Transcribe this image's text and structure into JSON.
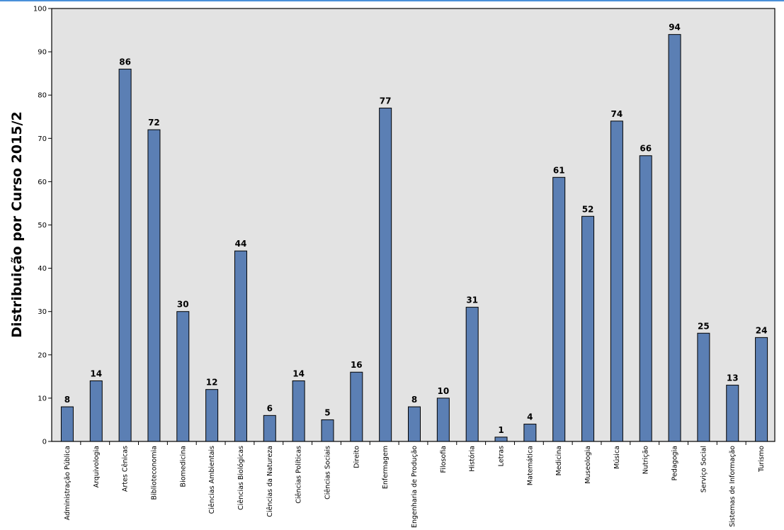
{
  "chart_data": {
    "type": "bar",
    "title": "",
    "xlabel": "",
    "ylabel": "Distribuição por Curso 2015/2",
    "ylim": [
      0,
      100
    ],
    "yticks": [
      0,
      10,
      20,
      30,
      40,
      50,
      60,
      70,
      80,
      90,
      100
    ],
    "grid": false,
    "legend": "none",
    "colors": {
      "bar": "#5b7fb4",
      "plot_background": "#e3e3e3",
      "bar_border": "#000000"
    },
    "categories": [
      "Administração Pública",
      "Arquivologia",
      "Artes Cênicas",
      "Biblioteconomia",
      "Biomedicina",
      "Ciências Ambientais",
      "Ciências Biológicas",
      "Ciências da Natureza",
      "Ciências Políticas",
      "Ciências Sociais",
      "Direito",
      "Enfermagem",
      "Engenharia de Produção",
      "Filosofia",
      "História",
      "Letras",
      "Matemática",
      "Medicina",
      "Museologia",
      "Música",
      "Nutrição",
      "Pedagogia",
      "Serviço Social",
      "Sistemas de Informação",
      "Turismo"
    ],
    "values": [
      8,
      14,
      86,
      72,
      30,
      12,
      44,
      6,
      14,
      5,
      16,
      77,
      8,
      10,
      31,
      1,
      4,
      61,
      52,
      74,
      66,
      94,
      25,
      13,
      24
    ]
  }
}
